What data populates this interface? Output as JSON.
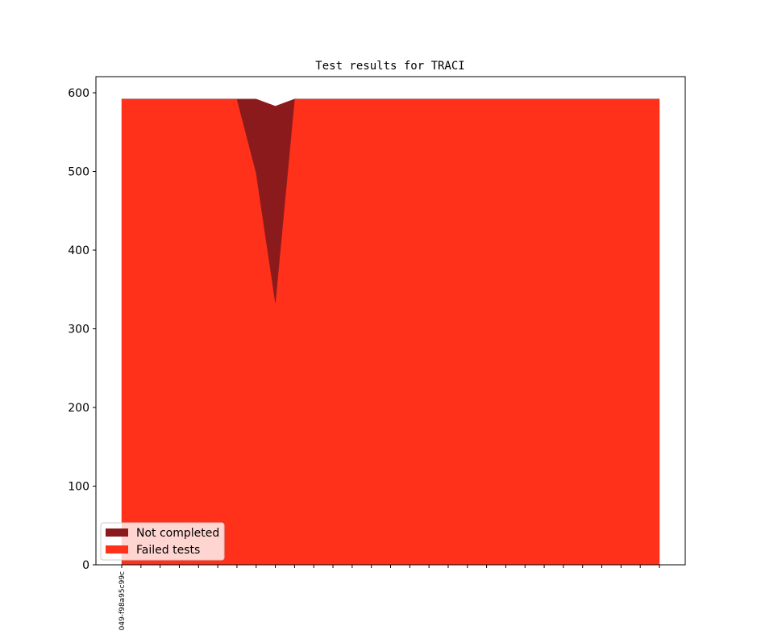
{
  "chart_data": {
    "type": "stacked_area",
    "title": "Test results for TRACI",
    "categories": [
      "049-f98a95c99c",
      null,
      null,
      null,
      null,
      null,
      null,
      null,
      null,
      null,
      null,
      null,
      null,
      null,
      null,
      null,
      null,
      null,
      null,
      null,
      null,
      null,
      null,
      null,
      null,
      null,
      null,
      null,
      null
    ],
    "series": [
      {
        "name": "Failed tests",
        "color": "#ff311a",
        "values": [
          592,
          592,
          592,
          592,
          592,
          592,
          592,
          498,
          333,
          592,
          592,
          592,
          592,
          592,
          592,
          592,
          592,
          592,
          592,
          592,
          592,
          592,
          592,
          592,
          592,
          592,
          592,
          592,
          592
        ]
      },
      {
        "name": "Not completed",
        "color": "#8b1a1d",
        "values": [
          0,
          0,
          0,
          0,
          0,
          0,
          0,
          94,
          250,
          0,
          0,
          0,
          0,
          0,
          0,
          0,
          0,
          0,
          0,
          0,
          0,
          0,
          0,
          0,
          0,
          0,
          0,
          0,
          0
        ]
      }
    ],
    "ylim": [
      0,
      620.5
    ],
    "yticks": [
      0,
      100,
      200,
      300,
      400,
      500,
      600
    ],
    "legend": "lower left"
  }
}
